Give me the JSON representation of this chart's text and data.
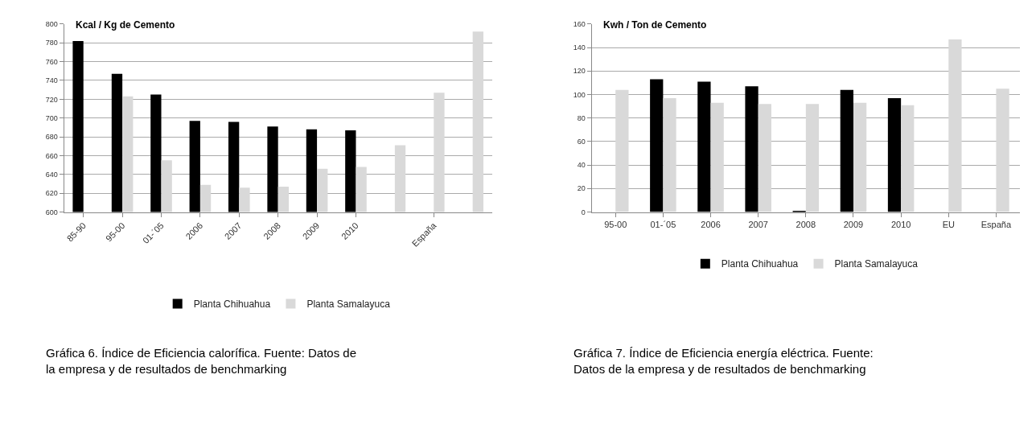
{
  "chart_data": [
    {
      "type": "bar",
      "title": "Kcal / Kg de Cemento",
      "categories": [
        "85-90",
        "95-00",
        "01-´05",
        "2006",
        "2007",
        "2008",
        "2009",
        "2010",
        null,
        "España",
        null
      ],
      "series": [
        {
          "name": "Planta Chihuahua",
          "color": "#000000",
          "values": [
            782,
            747,
            725,
            697,
            696,
            691,
            688,
            687,
            null,
            null,
            null
          ]
        },
        {
          "name": "Planta Samalayuca",
          "color": "#d9d9d9",
          "values": [
            null,
            723,
            655,
            629,
            626,
            627,
            646,
            648,
            671,
            727,
            792
          ]
        }
      ],
      "ylim": [
        600,
        800
      ],
      "yticks": [
        600,
        620,
        640,
        660,
        680,
        700,
        720,
        740,
        760,
        780,
        800
      ],
      "grid": "y",
      "legend": "bottom",
      "annotations": [
        "Gráfica 6. Índice de Eficiencia calorífica. Fuente: Datos de la empresa y de resultados de benchmarking"
      ]
    },
    {
      "type": "bar",
      "title": "Kwh / Ton de Cemento",
      "categories": [
        "95-00",
        "01-´05",
        "2006",
        "2007",
        "2008",
        "2009",
        "2010",
        "EU",
        "España"
      ],
      "series": [
        {
          "name": "Planta Chihuahua",
          "color": "#000000",
          "values": [
            null,
            113,
            111,
            107,
            1,
            104,
            97,
            null,
            null
          ]
        },
        {
          "name": "Planta Samalayuca",
          "color": "#d9d9d9",
          "values": [
            104,
            97,
            93,
            92,
            92,
            93,
            91,
            147,
            105
          ]
        }
      ],
      "ylim": [
        0,
        160
      ],
      "yticks": [
        0,
        20,
        40,
        60,
        80,
        100,
        120,
        140,
        160
      ],
      "grid": "y",
      "legend": "bottom",
      "annotations": [
        "Gráfica 7. Índice de Eficiencia energía eléctrica. Fuente: Datos de la empresa y de resultados de benchmarking"
      ]
    }
  ]
}
